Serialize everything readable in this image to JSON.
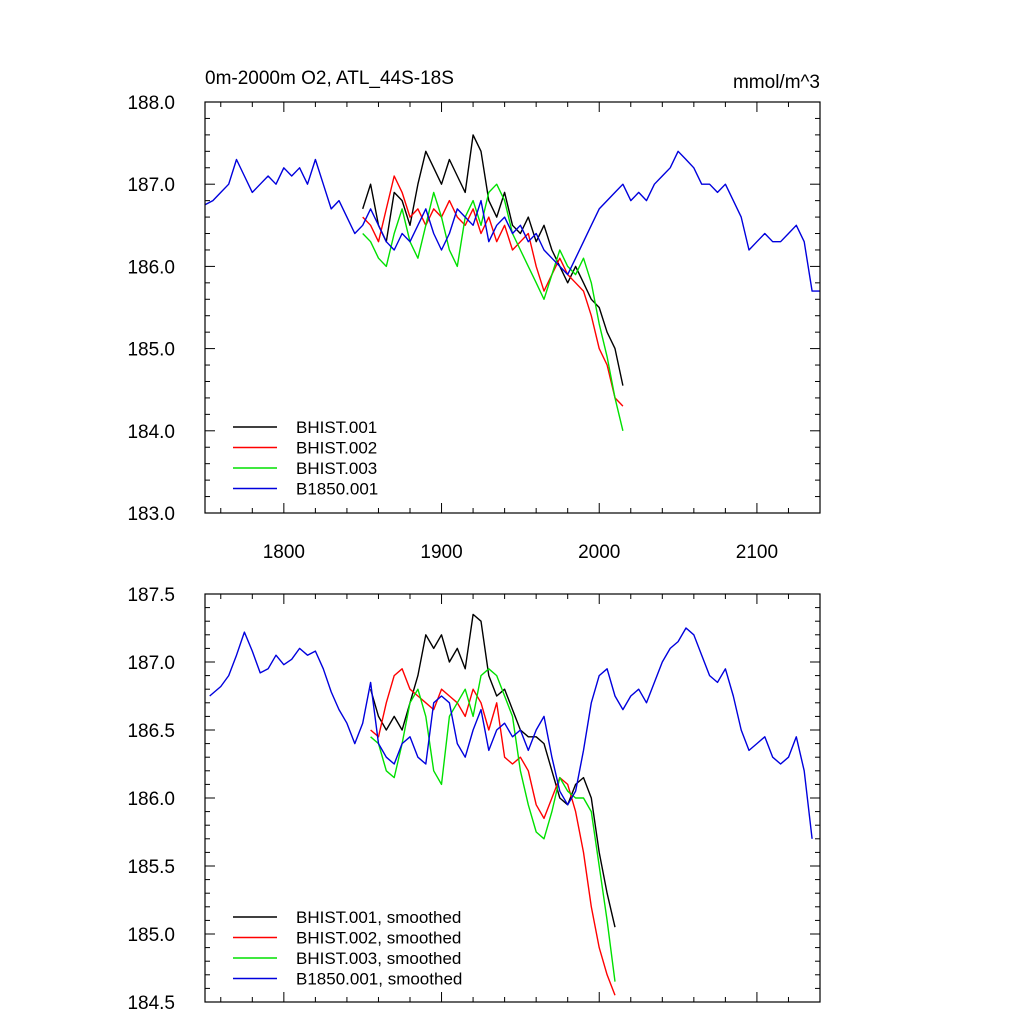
{
  "figure": {
    "title": "0m-2000m O2, ATL_44S-18S",
    "units": "mmol/m^3"
  },
  "colors": {
    "BHIST.001": "#000000",
    "BHIST.002": "#ff0000",
    "BHIST.003": "#00e000",
    "B1850.001": "#0000dd"
  },
  "chart_data": [
    {
      "type": "line",
      "title": "0m-2000m O2, ATL_44S-18S",
      "units": "mmol/m^3",
      "xlabel": "",
      "ylabel": "",
      "xlim": [
        1750,
        2140
      ],
      "ylim": [
        183.0,
        188.0
      ],
      "x_ticks": [
        1800,
        1900,
        2000,
        2100
      ],
      "y_ticks": [
        183.0,
        184.0,
        185.0,
        186.0,
        187.0,
        188.0
      ],
      "y_tick_labels": [
        "183.0",
        "184.0",
        "185.0",
        "186.0",
        "187.0",
        "188.0"
      ],
      "legend": "bottom-left",
      "grid": false,
      "series": [
        {
          "name": "BHIST.001",
          "color": "#000000",
          "x": [
            1850,
            1855,
            1860,
            1865,
            1870,
            1875,
            1880,
            1885,
            1890,
            1895,
            1900,
            1905,
            1910,
            1915,
            1920,
            1925,
            1930,
            1935,
            1940,
            1945,
            1950,
            1955,
            1960,
            1965,
            1970,
            1975,
            1980,
            1985,
            1990,
            1995,
            2000,
            2005,
            2010,
            2015
          ],
          "y": [
            186.7,
            187.0,
            186.5,
            186.3,
            186.9,
            186.8,
            186.5,
            187.0,
            187.4,
            187.2,
            187.0,
            187.3,
            187.1,
            186.9,
            187.6,
            187.4,
            186.8,
            186.6,
            186.9,
            186.5,
            186.4,
            186.6,
            186.3,
            186.5,
            186.2,
            186.0,
            185.8,
            186.0,
            185.8,
            185.6,
            185.5,
            185.2,
            185.0,
            184.55
          ]
        },
        {
          "name": "BHIST.002",
          "color": "#ff0000",
          "x": [
            1850,
            1855,
            1860,
            1865,
            1870,
            1875,
            1880,
            1885,
            1890,
            1895,
            1900,
            1905,
            1910,
            1915,
            1920,
            1925,
            1930,
            1935,
            1940,
            1945,
            1950,
            1955,
            1960,
            1965,
            1970,
            1975,
            1980,
            1985,
            1990,
            1995,
            2000,
            2005,
            2010,
            2015
          ],
          "y": [
            186.6,
            186.5,
            186.3,
            186.7,
            187.1,
            186.9,
            186.6,
            186.7,
            186.5,
            186.7,
            186.6,
            186.8,
            186.6,
            186.5,
            186.7,
            186.4,
            186.6,
            186.3,
            186.5,
            186.2,
            186.3,
            186.4,
            186.0,
            185.7,
            185.9,
            186.1,
            185.9,
            185.8,
            185.7,
            185.4,
            185.0,
            184.8,
            184.4,
            184.3
          ]
        },
        {
          "name": "BHIST.003",
          "color": "#00e000",
          "x": [
            1850,
            1855,
            1860,
            1865,
            1870,
            1875,
            1880,
            1885,
            1890,
            1895,
            1900,
            1905,
            1910,
            1915,
            1920,
            1925,
            1930,
            1935,
            1940,
            1945,
            1950,
            1955,
            1960,
            1965,
            1970,
            1975,
            1980,
            1985,
            1990,
            1995,
            2000,
            2005,
            2010,
            2015
          ],
          "y": [
            186.4,
            186.3,
            186.1,
            186.0,
            186.4,
            186.7,
            186.3,
            186.1,
            186.5,
            186.9,
            186.6,
            186.2,
            186.0,
            186.6,
            186.8,
            186.5,
            186.9,
            187.0,
            186.8,
            186.4,
            186.2,
            186.0,
            185.8,
            185.6,
            185.9,
            186.2,
            186.0,
            185.9,
            186.1,
            185.8,
            185.3,
            184.9,
            184.4,
            184.0
          ]
        },
        {
          "name": "B1850.001",
          "color": "#0000dd",
          "x": [
            1750,
            1755,
            1760,
            1765,
            1770,
            1775,
            1780,
            1785,
            1790,
            1795,
            1800,
            1805,
            1810,
            1815,
            1820,
            1825,
            1830,
            1835,
            1840,
            1845,
            1850,
            1855,
            1860,
            1865,
            1870,
            1875,
            1880,
            1885,
            1890,
            1895,
            1900,
            1905,
            1910,
            1915,
            1920,
            1925,
            1930,
            1935,
            1940,
            1945,
            1950,
            1955,
            1960,
            1965,
            1970,
            1975,
            1980,
            1985,
            1990,
            1995,
            2000,
            2005,
            2010,
            2015,
            2020,
            2025,
            2030,
            2035,
            2040,
            2045,
            2050,
            2055,
            2060,
            2065,
            2070,
            2075,
            2080,
            2085,
            2090,
            2095,
            2100,
            2105,
            2110,
            2115,
            2120,
            2125,
            2130,
            2135,
            2140
          ],
          "y": [
            186.75,
            186.8,
            186.9,
            187.0,
            187.3,
            187.1,
            186.9,
            187.0,
            187.1,
            187.0,
            187.2,
            187.1,
            187.2,
            187.0,
            187.3,
            187.0,
            186.7,
            186.8,
            186.6,
            186.4,
            186.5,
            186.7,
            186.5,
            186.3,
            186.2,
            186.4,
            186.3,
            186.5,
            186.7,
            186.4,
            186.2,
            186.4,
            186.7,
            186.6,
            186.5,
            186.8,
            186.3,
            186.5,
            186.6,
            186.4,
            186.5,
            186.3,
            186.4,
            186.2,
            186.1,
            186.0,
            185.9,
            186.1,
            186.3,
            186.5,
            186.7,
            186.8,
            186.9,
            187.0,
            186.8,
            186.9,
            186.8,
            187.0,
            187.1,
            187.2,
            187.4,
            187.3,
            187.2,
            187.0,
            187.0,
            186.9,
            187.0,
            186.8,
            186.6,
            186.2,
            186.3,
            186.4,
            186.3,
            186.3,
            186.4,
            186.5,
            186.3,
            185.7,
            185.7
          ]
        }
      ]
    },
    {
      "type": "line",
      "title": "",
      "xlabel": "",
      "ylabel": "",
      "xlim": [
        1750,
        2140
      ],
      "ylim": [
        184.5,
        187.5
      ],
      "x_ticks": [
        1800,
        1900,
        2000,
        2100
      ],
      "y_ticks": [
        184.5,
        185.0,
        185.5,
        186.0,
        186.5,
        187.0,
        187.5
      ],
      "y_tick_labels": [
        "184.5",
        "185.0",
        "185.5",
        "186.0",
        "186.5",
        "187.0",
        "187.5"
      ],
      "legend": "bottom-left",
      "grid": false,
      "series": [
        {
          "name": "BHIST.001, smoothed",
          "color": "#000000",
          "x": [
            1855,
            1860,
            1865,
            1870,
            1875,
            1880,
            1885,
            1890,
            1895,
            1900,
            1905,
            1910,
            1915,
            1920,
            1925,
            1930,
            1935,
            1940,
            1945,
            1950,
            1955,
            1960,
            1965,
            1970,
            1975,
            1980,
            1985,
            1990,
            1995,
            2000,
            2005,
            2010
          ],
          "y": [
            186.8,
            186.6,
            186.5,
            186.6,
            186.5,
            186.7,
            186.9,
            187.2,
            187.1,
            187.2,
            187.0,
            187.1,
            186.95,
            187.35,
            187.3,
            186.9,
            186.75,
            186.8,
            186.65,
            186.5,
            186.45,
            186.45,
            186.4,
            186.2,
            186.0,
            185.95,
            186.1,
            186.15,
            186.0,
            185.6,
            185.3,
            185.05
          ]
        },
        {
          "name": "BHIST.002, smoothed",
          "color": "#ff0000",
          "x": [
            1855,
            1860,
            1865,
            1870,
            1875,
            1880,
            1885,
            1890,
            1895,
            1900,
            1905,
            1910,
            1915,
            1920,
            1925,
            1930,
            1935,
            1940,
            1945,
            1950,
            1955,
            1960,
            1965,
            1970,
            1975,
            1980,
            1985,
            1990,
            1995,
            2000,
            2005,
            2010
          ],
          "y": [
            186.5,
            186.45,
            186.7,
            186.9,
            186.95,
            186.8,
            186.75,
            186.7,
            186.65,
            186.8,
            186.75,
            186.7,
            186.6,
            186.8,
            186.7,
            186.5,
            186.7,
            186.3,
            186.25,
            186.3,
            186.2,
            185.95,
            185.85,
            186.0,
            186.15,
            186.1,
            185.9,
            185.6,
            185.2,
            184.9,
            184.7,
            184.55
          ]
        },
        {
          "name": "BHIST.003, smoothed",
          "color": "#00e000",
          "x": [
            1855,
            1860,
            1865,
            1870,
            1875,
            1880,
            1885,
            1890,
            1895,
            1900,
            1905,
            1910,
            1915,
            1920,
            1925,
            1930,
            1935,
            1940,
            1945,
            1950,
            1955,
            1960,
            1965,
            1970,
            1975,
            1980,
            1985,
            1990,
            1995,
            2000,
            2005,
            2010
          ],
          "y": [
            186.45,
            186.4,
            186.2,
            186.15,
            186.4,
            186.7,
            186.8,
            186.6,
            186.2,
            186.1,
            186.6,
            186.7,
            186.8,
            186.6,
            186.9,
            186.95,
            186.9,
            186.75,
            186.6,
            186.2,
            185.95,
            185.75,
            185.7,
            185.9,
            186.15,
            186.05,
            186.0,
            186.0,
            185.9,
            185.5,
            185.1,
            184.65
          ]
        },
        {
          "name": "B1850.001, smoothed",
          "color": "#0000dd",
          "x": [
            1753,
            1760,
            1765,
            1770,
            1775,
            1780,
            1785,
            1790,
            1795,
            1800,
            1805,
            1810,
            1815,
            1820,
            1825,
            1830,
            1835,
            1840,
            1845,
            1850,
            1855,
            1860,
            1865,
            1870,
            1875,
            1880,
            1885,
            1890,
            1895,
            1900,
            1905,
            1910,
            1915,
            1920,
            1925,
            1930,
            1935,
            1940,
            1945,
            1950,
            1955,
            1960,
            1965,
            1970,
            1975,
            1980,
            1985,
            1990,
            1995,
            2000,
            2005,
            2010,
            2015,
            2020,
            2025,
            2030,
            2035,
            2040,
            2045,
            2050,
            2055,
            2060,
            2065,
            2070,
            2075,
            2080,
            2085,
            2090,
            2095,
            2100,
            2105,
            2110,
            2115,
            2120,
            2125,
            2130,
            2135
          ],
          "y": [
            186.75,
            186.82,
            186.9,
            187.05,
            187.22,
            187.08,
            186.92,
            186.95,
            187.05,
            186.98,
            187.02,
            187.1,
            187.05,
            187.08,
            186.95,
            186.78,
            186.65,
            186.55,
            186.4,
            186.55,
            186.85,
            186.4,
            186.3,
            186.25,
            186.4,
            186.45,
            186.3,
            186.25,
            186.7,
            186.75,
            186.7,
            186.4,
            186.3,
            186.5,
            186.65,
            186.35,
            186.5,
            186.55,
            186.45,
            186.5,
            186.35,
            186.5,
            186.6,
            186.3,
            186.05,
            185.95,
            186.05,
            186.35,
            186.7,
            186.9,
            186.95,
            186.75,
            186.65,
            186.75,
            186.8,
            186.7,
            186.85,
            187.0,
            187.1,
            187.15,
            187.25,
            187.2,
            187.05,
            186.9,
            186.85,
            186.95,
            186.75,
            186.5,
            186.35,
            186.4,
            186.45,
            186.3,
            186.25,
            186.3,
            186.45,
            186.2,
            185.7
          ]
        }
      ]
    }
  ]
}
